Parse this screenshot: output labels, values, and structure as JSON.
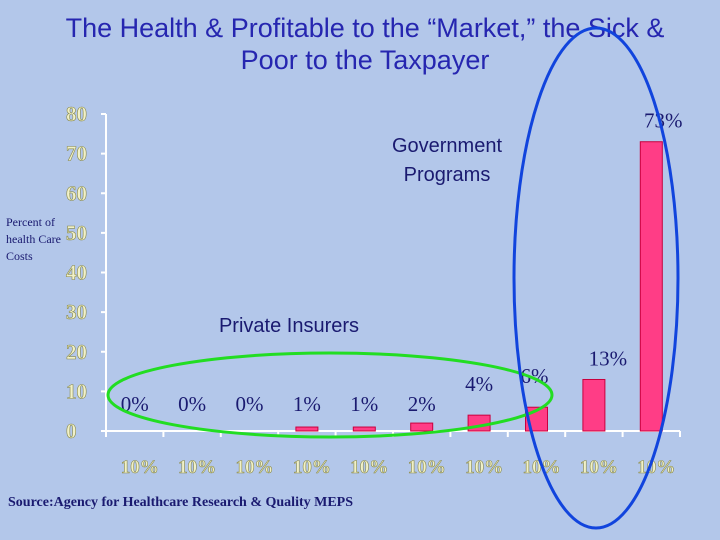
{
  "title": "The Health & Profitable to the “Market,” the Sick & Poor to the Taxpayer",
  "source": "Source:Agency for Healthcare Research & Quality MEPS",
  "colors": {
    "background": "#b3c7ea",
    "bar": "#ff3d86",
    "private_ellipse": "#22dd22",
    "government_ellipse": "#1144dd"
  },
  "annotations": {
    "government": [
      "Government",
      "Programs"
    ],
    "private": "Private Insurers"
  },
  "chart_data": {
    "type": "bar",
    "ylabel": "Percent of health Care Costs",
    "xlabel": "",
    "ylim": [
      0,
      80
    ],
    "yticks": [
      "80",
      "70",
      "60",
      "50",
      "40",
      "30",
      "20",
      "10",
      "0"
    ],
    "categories": [
      "10%",
      "10%",
      "10%",
      "10%",
      "10%",
      "10%",
      "10%",
      "10%",
      "10%",
      "10%"
    ],
    "values": [
      0,
      0,
      0,
      1,
      1,
      2,
      4,
      6,
      13,
      73
    ],
    "data_labels": [
      "0%",
      "0%",
      "0%",
      "1%",
      "1%",
      "2%",
      "4%",
      "6%",
      "13%",
      "73%"
    ]
  }
}
